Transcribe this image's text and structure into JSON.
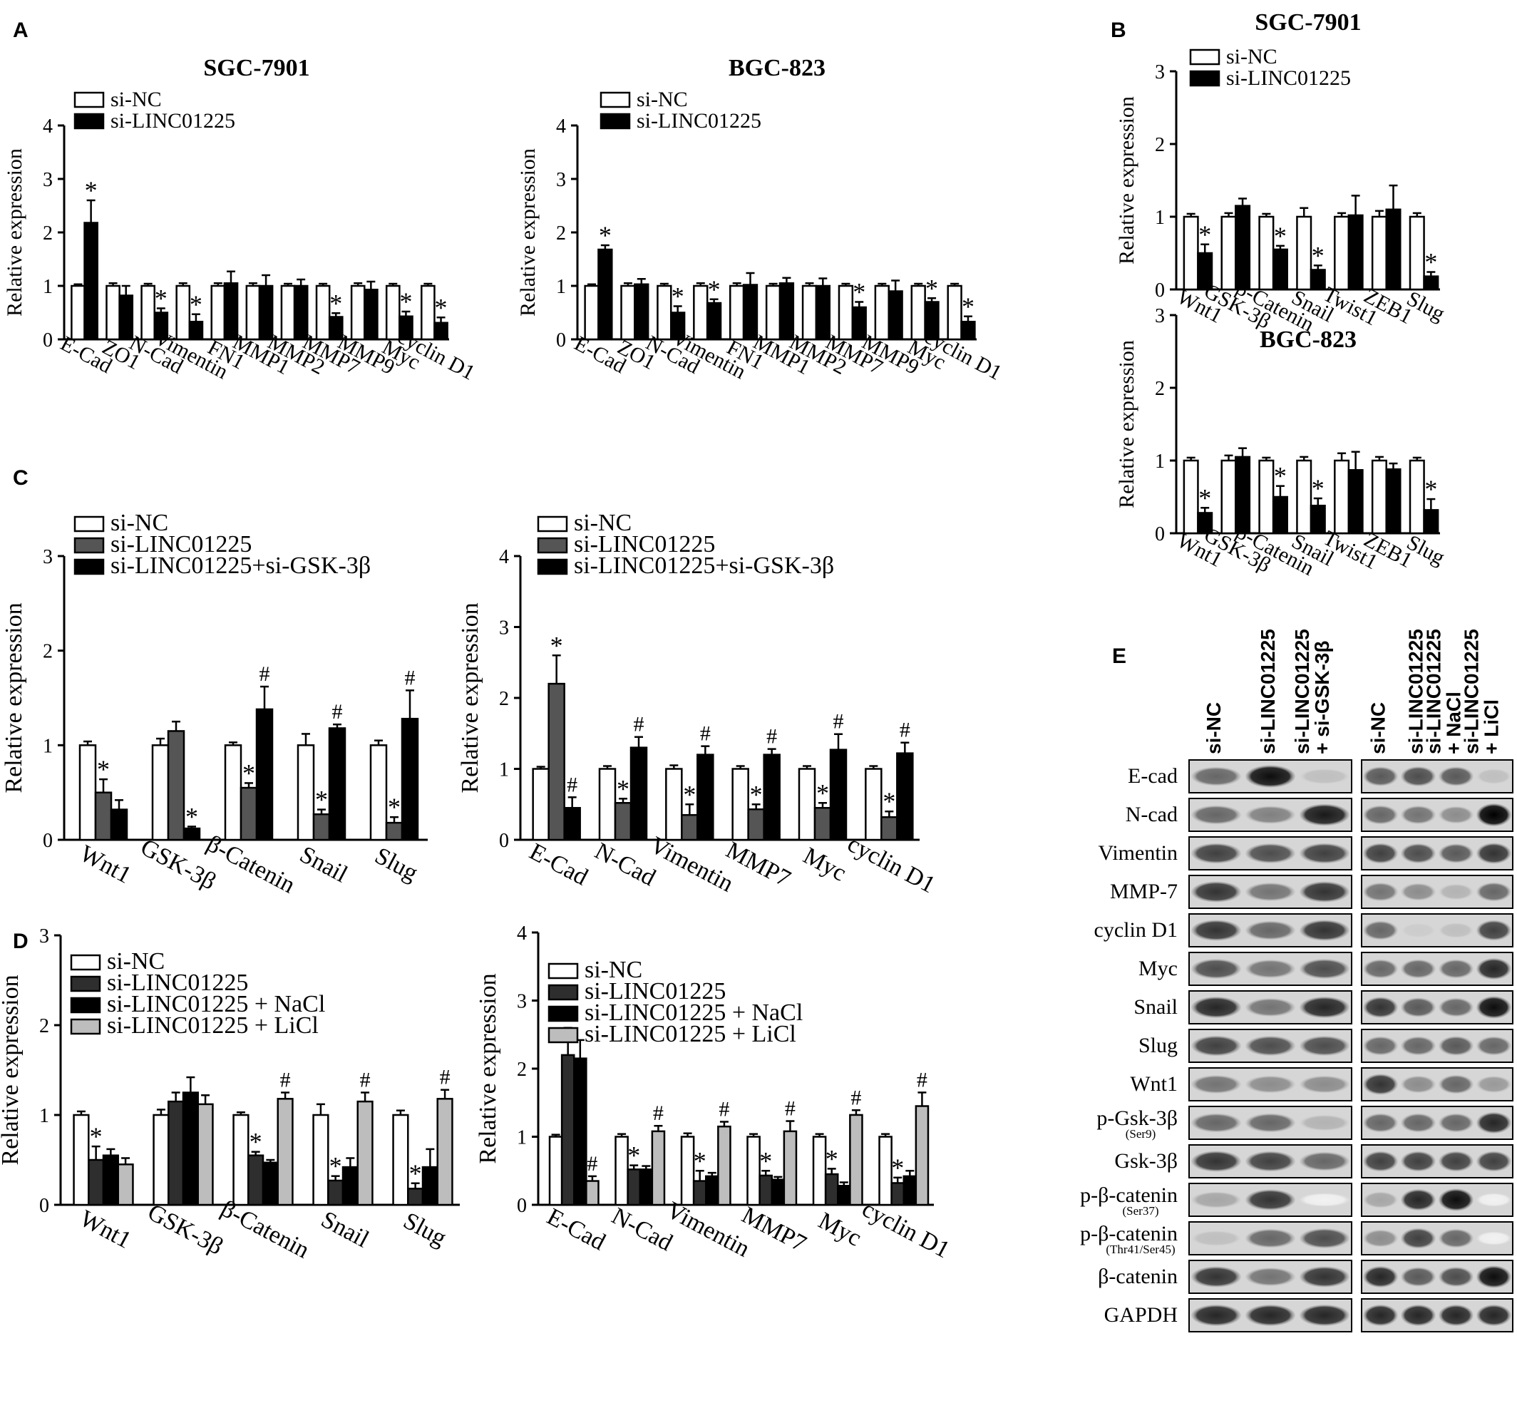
{
  "panel_letters": [
    "A",
    "B",
    "C",
    "D",
    "E"
  ],
  "colors": {
    "si_nc": "#ffffff",
    "si_linc": "#000000",
    "si_linc_grey": "#555555",
    "si_linc_dark": "#2e2e2e",
    "nacl": "#000000",
    "licl": "#bdbdbd",
    "axis": "#000000"
  },
  "chart_data": [
    {
      "id": "A-SGC",
      "panel": "A",
      "type": "bar",
      "title": "SGC-7901",
      "ylabel": "Relative expression",
      "xlabel": "",
      "ylim": [
        0,
        4
      ],
      "yticks": [
        "0",
        "1",
        "2",
        "3",
        "4"
      ],
      "categories": [
        "E-Cad",
        "ZO1",
        "N-Cad",
        "Vimentin",
        "FN1",
        "MMP1",
        "MMP2",
        "MMP7",
        "MMP9",
        "Myc",
        "cyclin D1"
      ],
      "series": [
        {
          "name": "si-NC",
          "values": [
            1,
            1,
            1,
            1,
            1,
            1,
            1,
            1,
            1,
            1,
            1
          ],
          "errors": [
            0.03,
            0.05,
            0.04,
            0.05,
            0.05,
            0.05,
            0.04,
            0.04,
            0.05,
            0.04,
            0.04
          ]
        },
        {
          "name": "si-LINC01225",
          "values": [
            2.18,
            0.82,
            0.5,
            0.33,
            1.05,
            1.0,
            1.0,
            0.42,
            0.93,
            0.43,
            0.31
          ],
          "errors": [
            0.42,
            0.18,
            0.08,
            0.14,
            0.22,
            0.2,
            0.12,
            0.07,
            0.15,
            0.09,
            0.1
          ]
        }
      ],
      "annotations": [
        "*",
        "",
        "*",
        "*",
        "",
        "",
        "",
        "*",
        "",
        "*",
        "*"
      ],
      "legend": "top-left",
      "grid": false
    },
    {
      "id": "A-BGC",
      "panel": "A",
      "type": "bar",
      "title": "BGC-823",
      "ylabel": "Relative expression",
      "xlabel": "",
      "ylim": [
        0,
        4
      ],
      "yticks": [
        "0",
        "1",
        "2",
        "3",
        "4"
      ],
      "categories": [
        "E-Cad",
        "ZO1",
        "N-Cad",
        "Vimentin",
        "FN1",
        "MMP1",
        "MMP2",
        "MMP7",
        "MMP9",
        "Myc",
        "cyclin D1"
      ],
      "series": [
        {
          "name": "si-NC",
          "values": [
            1,
            1,
            1,
            1,
            1,
            1,
            1,
            1,
            1,
            1,
            1
          ],
          "errors": [
            0.03,
            0.05,
            0.04,
            0.05,
            0.05,
            0.04,
            0.05,
            0.04,
            0.04,
            0.04,
            0.04
          ]
        },
        {
          "name": "si-LINC01225",
          "values": [
            1.68,
            1.03,
            0.5,
            0.68,
            1.02,
            1.05,
            1.0,
            0.6,
            0.9,
            0.7,
            0.33
          ],
          "errors": [
            0.08,
            0.1,
            0.12,
            0.07,
            0.22,
            0.1,
            0.14,
            0.1,
            0.2,
            0.07,
            0.1
          ]
        }
      ],
      "annotations": [
        "*",
        "",
        "*",
        "*",
        "",
        "",
        "",
        "*",
        "",
        "*",
        "*"
      ],
      "legend": "top-left",
      "grid": false
    },
    {
      "id": "B-SGC",
      "panel": "B",
      "type": "bar",
      "title": "SGC-7901",
      "ylabel": "Relative expression",
      "xlabel": "",
      "ylim": [
        0,
        3
      ],
      "yticks": [
        "0",
        "1",
        "2",
        "3"
      ],
      "categories": [
        "Wnt1",
        "GSK-3β",
        "β-Catenin",
        "Snail",
        "Twist1",
        "ZEB1",
        "Slug"
      ],
      "series": [
        {
          "name": "si-NC",
          "values": [
            1,
            1,
            1,
            1,
            1,
            1,
            1
          ],
          "errors": [
            0.04,
            0.05,
            0.04,
            0.12,
            0.05,
            0.08,
            0.05
          ]
        },
        {
          "name": "si-LINC01225",
          "values": [
            0.5,
            1.15,
            0.55,
            0.27,
            1.02,
            1.1,
            0.18
          ],
          "errors": [
            0.12,
            0.1,
            0.05,
            0.06,
            0.27,
            0.33,
            0.06
          ]
        }
      ],
      "annotations": [
        "*",
        "",
        "*",
        "*",
        "",
        "",
        "*"
      ],
      "legend": "top-left",
      "grid": false
    },
    {
      "id": "B-BGC",
      "panel": "B",
      "type": "bar",
      "title": "BGC-823",
      "ylabel": "Relative expression",
      "xlabel": "",
      "ylim": [
        0,
        3
      ],
      "yticks": [
        "0",
        "1",
        "2",
        "3"
      ],
      "categories": [
        "Wnt1",
        "GSK-3β",
        "β-Catenin",
        "Snail",
        "Twist1",
        "ZEB1",
        "Slug"
      ],
      "series": [
        {
          "name": "si-NC",
          "values": [
            1,
            1,
            1,
            1,
            1,
            1,
            1
          ],
          "errors": [
            0.04,
            0.07,
            0.04,
            0.05,
            0.1,
            0.05,
            0.04
          ]
        },
        {
          "name": "si-LINC01225",
          "values": [
            0.28,
            1.05,
            0.5,
            0.38,
            0.87,
            0.88,
            0.32
          ],
          "errors": [
            0.07,
            0.12,
            0.15,
            0.1,
            0.25,
            0.08,
            0.15
          ]
        }
      ],
      "annotations": [
        "*",
        "",
        "*",
        "*",
        "",
        "",
        "*"
      ],
      "legend": "none",
      "grid": false
    },
    {
      "id": "C-left",
      "panel": "C",
      "type": "bar",
      "title": "",
      "ylabel": "Relative expression",
      "xlabel": "",
      "ylim": [
        0,
        3
      ],
      "yticks": [
        "0",
        "1",
        "2",
        "3"
      ],
      "categories": [
        "Wnt1",
        "GSK-3β",
        "β-Catenin",
        "Snail",
        "Slug"
      ],
      "series": [
        {
          "name": "si-NC",
          "values": [
            1,
            1,
            1,
            1,
            1
          ],
          "errors": [
            0.04,
            0.07,
            0.03,
            0.12,
            0.05
          ]
        },
        {
          "name": "si-LINC01225",
          "values": [
            0.5,
            1.15,
            0.55,
            0.27,
            0.18
          ],
          "errors": [
            0.14,
            0.1,
            0.05,
            0.05,
            0.06
          ]
        },
        {
          "name": "si-LINC01225+si-GSK-3β",
          "values": [
            0.32,
            0.12,
            1.38,
            1.18,
            1.28
          ],
          "errors": [
            0.1,
            0.02,
            0.24,
            0.04,
            0.3
          ]
        }
      ],
      "annotations": [
        [
          "",
          "*",
          ""
        ],
        [
          "",
          "",
          "*"
        ],
        [
          "",
          "*",
          "#"
        ],
        [
          "",
          "*",
          "#"
        ],
        [
          "",
          "*",
          "#"
        ]
      ],
      "legend": "top-left",
      "grid": false
    },
    {
      "id": "C-right",
      "panel": "C",
      "type": "bar",
      "title": "",
      "ylabel": "Relative expression",
      "xlabel": "",
      "ylim": [
        0,
        4
      ],
      "yticks": [
        "0",
        "1",
        "2",
        "3",
        "4"
      ],
      "categories": [
        "E-Cad",
        "N-Cad",
        "Vimentin",
        "MMP7",
        "Myc",
        "cyclin D1"
      ],
      "series": [
        {
          "name": "si-NC",
          "values": [
            1,
            1,
            1,
            1,
            1,
            1
          ],
          "errors": [
            0.03,
            0.04,
            0.05,
            0.04,
            0.04,
            0.04
          ]
        },
        {
          "name": "si-LINC01225",
          "values": [
            2.2,
            0.52,
            0.35,
            0.43,
            0.45,
            0.32
          ],
          "errors": [
            0.4,
            0.06,
            0.15,
            0.07,
            0.07,
            0.08
          ]
        },
        {
          "name": "si-LINC01225+si-GSK-3β",
          "values": [
            0.45,
            1.3,
            1.2,
            1.2,
            1.27,
            1.22
          ],
          "errors": [
            0.15,
            0.15,
            0.12,
            0.08,
            0.22,
            0.15
          ]
        }
      ],
      "annotations": [
        [
          "",
          "*",
          "#"
        ],
        [
          "",
          "*",
          "#"
        ],
        [
          "",
          "*",
          "#"
        ],
        [
          "",
          "*",
          "#"
        ],
        [
          "",
          "*",
          "#"
        ],
        [
          "",
          "*",
          "#"
        ]
      ],
      "legend": "top-left",
      "grid": false
    },
    {
      "id": "D-left",
      "panel": "D",
      "type": "bar",
      "title": "",
      "ylabel": "Relative expression",
      "xlabel": "",
      "ylim": [
        0,
        3
      ],
      "yticks": [
        "0",
        "1",
        "2",
        "3"
      ],
      "categories": [
        "Wnt1",
        "GSK-3β",
        "β-Catenin",
        "Snail",
        "Slug"
      ],
      "series": [
        {
          "name": "si-NC",
          "values": [
            1,
            1,
            1,
            1,
            1
          ],
          "errors": [
            0.04,
            0.06,
            0.03,
            0.12,
            0.05
          ]
        },
        {
          "name": "si-LINC01225",
          "values": [
            0.5,
            1.15,
            0.55,
            0.27,
            0.18
          ],
          "errors": [
            0.15,
            0.1,
            0.04,
            0.05,
            0.06
          ]
        },
        {
          "name": "si-LINC01225 + NaCl",
          "values": [
            0.55,
            1.25,
            0.47,
            0.42,
            0.42
          ],
          "errors": [
            0.07,
            0.17,
            0.03,
            0.1,
            0.2
          ]
        },
        {
          "name": "si-LINC01225 + LiCl",
          "values": [
            0.45,
            1.12,
            1.18,
            1.15,
            1.18
          ],
          "errors": [
            0.07,
            0.1,
            0.07,
            0.1,
            0.1
          ]
        }
      ],
      "annotations": [
        [
          "",
          "*",
          "",
          ""
        ],
        [
          "",
          "",
          "",
          ""
        ],
        [
          "",
          "*",
          "",
          "#"
        ],
        [
          "",
          "*",
          "",
          "#"
        ],
        [
          "",
          "*",
          "",
          "#"
        ]
      ],
      "legend": "top-left",
      "grid": false
    },
    {
      "id": "D-right",
      "panel": "D",
      "type": "bar",
      "title": "",
      "ylabel": "Relative expression",
      "xlabel": "",
      "ylim": [
        0,
        4
      ],
      "yticks": [
        "0",
        "1",
        "2",
        "3",
        "4"
      ],
      "categories": [
        "E-Cad",
        "N-Cad",
        "Vimentin",
        "MMP7",
        "Myc",
        "cyclin D1"
      ],
      "series": [
        {
          "name": "si-NC",
          "values": [
            1,
            1,
            1,
            1,
            1,
            1
          ],
          "errors": [
            0.03,
            0.04,
            0.05,
            0.04,
            0.04,
            0.04
          ]
        },
        {
          "name": "si-LINC01225",
          "values": [
            2.2,
            0.52,
            0.35,
            0.43,
            0.45,
            0.32
          ],
          "errors": [
            0.4,
            0.06,
            0.15,
            0.07,
            0.08,
            0.08
          ]
        },
        {
          "name": "si-LINC01225 + NaCl",
          "values": [
            2.15,
            0.52,
            0.42,
            0.37,
            0.28,
            0.42
          ],
          "errors": [
            0.27,
            0.05,
            0.05,
            0.04,
            0.05,
            0.08
          ]
        },
        {
          "name": "si-LINC01225 + LiCl",
          "values": [
            0.35,
            1.08,
            1.15,
            1.08,
            1.32,
            1.45
          ],
          "errors": [
            0.07,
            0.08,
            0.07,
            0.15,
            0.07,
            0.2
          ]
        }
      ],
      "annotations": [
        [
          "",
          "*",
          "",
          "#"
        ],
        [
          "",
          "*",
          "",
          "#"
        ],
        [
          "",
          "*",
          "",
          "#"
        ],
        [
          "",
          "*",
          "",
          "#"
        ],
        [
          "",
          "*",
          "",
          "#"
        ],
        [
          "",
          "*",
          "",
          "#"
        ]
      ],
      "legend": "top-left",
      "grid": false
    }
  ],
  "western_blot": {
    "panel": "E",
    "left_lanes": [
      "si-NC",
      "si-LINC01225",
      "si-LINC01225\n+ si-GSK-3β"
    ],
    "right_lanes": [
      "si-NC",
      "si-LINC01225",
      "si-LINC01225\n+ NaCl",
      "si-LINC01225\n+ LiCl"
    ],
    "rows": [
      {
        "label": "E-cad",
        "sub": ""
      },
      {
        "label": "N-cad",
        "sub": ""
      },
      {
        "label": "Vimentin",
        "sub": ""
      },
      {
        "label": "MMP-7",
        "sub": ""
      },
      {
        "label": "cyclin D1",
        "sub": ""
      },
      {
        "label": "Myc",
        "sub": ""
      },
      {
        "label": "Snail",
        "sub": ""
      },
      {
        "label": "Slug",
        "sub": ""
      },
      {
        "label": "Wnt1",
        "sub": ""
      },
      {
        "label": "p-Gsk-3β",
        "sub": "(Ser9)"
      },
      {
        "label": "Gsk-3β",
        "sub": ""
      },
      {
        "label": "p-β-catenin",
        "sub": "(Ser37)"
      },
      {
        "label": "p-β-catenin",
        "sub": "(Thr41/Ser45)"
      },
      {
        "label": "β-catenin",
        "sub": ""
      },
      {
        "label": "GAPDH",
        "sub": ""
      }
    ],
    "band_intensity_left": [
      [
        0.6,
        0.95,
        0.25
      ],
      [
        0.6,
        0.5,
        0.9
      ],
      [
        0.75,
        0.7,
        0.75
      ],
      [
        0.8,
        0.55,
        0.8
      ],
      [
        0.8,
        0.6,
        0.8
      ],
      [
        0.7,
        0.55,
        0.7
      ],
      [
        0.85,
        0.55,
        0.85
      ],
      [
        0.75,
        0.7,
        0.7
      ],
      [
        0.55,
        0.45,
        0.45
      ],
      [
        0.6,
        0.6,
        0.3
      ],
      [
        0.8,
        0.75,
        0.6
      ],
      [
        0.35,
        0.8,
        0.05
      ],
      [
        0.25,
        0.6,
        0.7
      ],
      [
        0.8,
        0.55,
        0.8
      ],
      [
        0.85,
        0.85,
        0.85
      ]
    ],
    "band_intensity_right": [
      [
        0.65,
        0.7,
        0.65,
        0.25
      ],
      [
        0.6,
        0.55,
        0.45,
        1.0
      ],
      [
        0.75,
        0.7,
        0.65,
        0.8
      ],
      [
        0.55,
        0.45,
        0.3,
        0.6
      ],
      [
        0.6,
        0.2,
        0.25,
        0.75
      ],
      [
        0.6,
        0.6,
        0.6,
        0.85
      ],
      [
        0.8,
        0.65,
        0.6,
        0.95
      ],
      [
        0.6,
        0.6,
        0.65,
        0.6
      ],
      [
        0.8,
        0.45,
        0.6,
        0.4
      ],
      [
        0.6,
        0.6,
        0.6,
        0.85
      ],
      [
        0.75,
        0.75,
        0.75,
        0.75
      ],
      [
        0.35,
        0.85,
        0.95,
        0.05
      ],
      [
        0.45,
        0.75,
        0.6,
        0.05
      ],
      [
        0.85,
        0.65,
        0.7,
        0.95
      ],
      [
        0.85,
        0.85,
        0.85,
        0.85
      ]
    ]
  }
}
